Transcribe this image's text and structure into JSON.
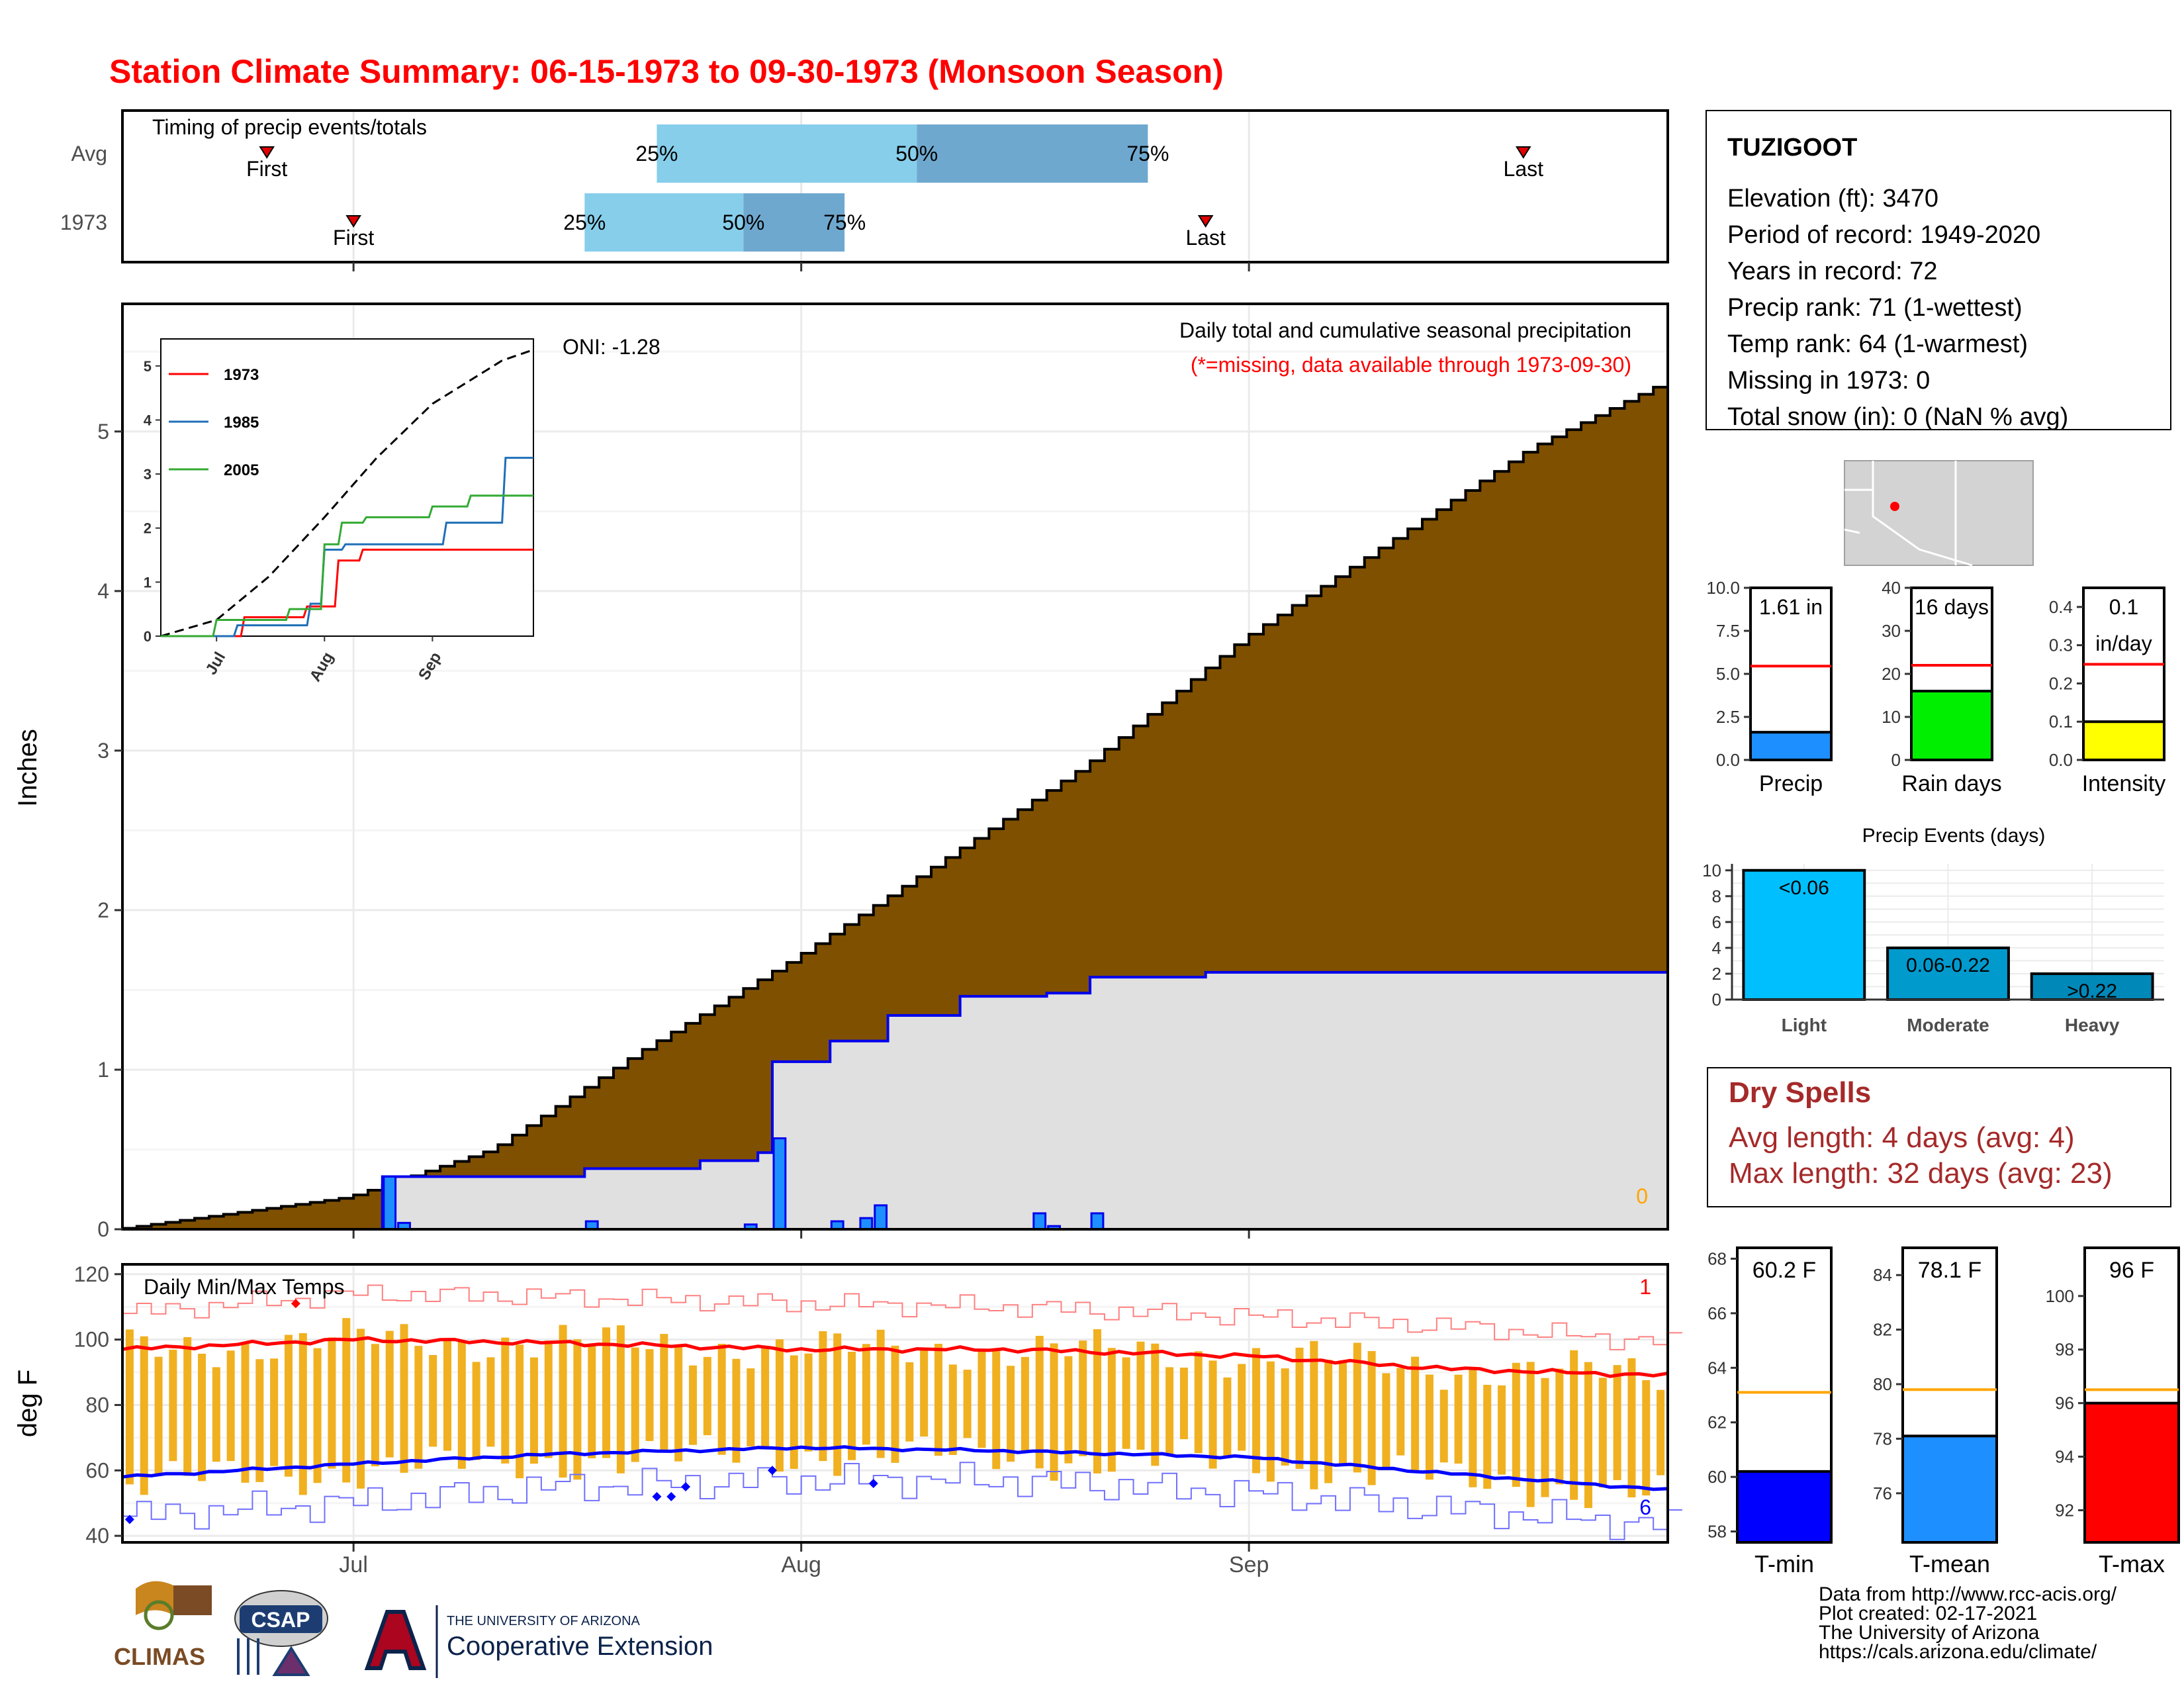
{
  "title": "Station Climate Summary: 06-15-1973 to 09-30-1973 (Monsoon Season)",
  "colors": {
    "title": "#ff0000",
    "brown": "#7f5000",
    "gray_area": "#e0e0e0",
    "blue_line": "#0000ee",
    "bar_blue": "#1e8fff",
    "light_blue": "#87ceeb",
    "mid_blue": "#6fa8cf",
    "tmax": "#ff0000",
    "tmin": "#0000ff",
    "orange": "#f0b020",
    "dry": "#a52a2a"
  },
  "timing": {
    "heading": "Timing of precip events/totals",
    "rows": [
      {
        "label": "Avg",
        "first_day": "06-25",
        "last_day": "09-20",
        "q25": "07-22",
        "q50": "08-09",
        "q75": "08-25",
        "first": "First",
        "last": "Last",
        "p25": "25%",
        "p50": "50%",
        "p75": "75%"
      },
      {
        "label": "1973",
        "first_day": "07-01",
        "last_day": "08-29",
        "q25": "07-17",
        "q50": "07-28",
        "q75": "08-04",
        "first": "First",
        "last": "Last",
        "p25": "25%",
        "p50": "50%",
        "p75": "75%"
      }
    ]
  },
  "precip_panel": {
    "ylabel": "Inches",
    "oni": "ONI: -1.28",
    "heading": "Daily total and cumulative seasonal precipitation",
    "note": "(*=missing, data available through 1973-09-30)",
    "missing_count": "0",
    "y_ticks": [
      "0",
      "1",
      "2",
      "3",
      "4",
      "5"
    ],
    "x_ticks": [
      "Jul",
      "Aug",
      "Sep"
    ]
  },
  "inset": {
    "y_ticks": [
      "0",
      "1",
      "2",
      "3",
      "4",
      "5"
    ],
    "x_ticks": [
      "Jul",
      "Aug",
      "Sep"
    ],
    "legend": [
      "1973",
      "1985",
      "2005"
    ]
  },
  "temp_panel": {
    "ylabel": "deg F",
    "heading": "Daily Min/Max Temps",
    "y_ticks": [
      "40",
      "60",
      "80",
      "100",
      "120"
    ],
    "x_ticks": [
      "Jul",
      "Aug",
      "Sep"
    ],
    "count_hot": "1",
    "count_cold": "6"
  },
  "station": {
    "name": "TUZIGOOT",
    "lines": [
      "Elevation (ft): 3470",
      "Period of record: 1949-2020",
      "Years in record: 72",
      "Precip rank: 71 (1-wettest)",
      "Temp rank: 64 (1-warmest)",
      "Missing in 1973: 0",
      "Total snow (in): 0 (NaN % avg)"
    ]
  },
  "mini_bars": [
    {
      "label": "Precip",
      "value_text": "1.61 in",
      "value": 1.61,
      "avg": 5.45,
      "ymax": 10.0,
      "ticks": [
        "0.0",
        "2.5",
        "5.0",
        "7.5",
        "10.0"
      ],
      "tick_vals": [
        0,
        2.5,
        5,
        7.5,
        10
      ],
      "fill": "#1e8fff"
    },
    {
      "label": "Rain days",
      "value_text": "16 days",
      "value": 16,
      "avg": 22,
      "ymax": 40,
      "ticks": [
        "0",
        "10",
        "20",
        "30",
        "40"
      ],
      "tick_vals": [
        0,
        10,
        20,
        30,
        40
      ],
      "fill": "#00ee00"
    },
    {
      "label": "Intensity",
      "value_text": "0.1",
      "value_text2": "in/day",
      "value": 0.1,
      "avg": 0.25,
      "ymax": 0.45,
      "ticks": [
        "0.0",
        "0.1",
        "0.2",
        "0.3",
        "0.4"
      ],
      "tick_vals": [
        0,
        0.1,
        0.2,
        0.3,
        0.4
      ],
      "fill": "#ffff00"
    }
  ],
  "events": {
    "title": "Precip Events (days)",
    "categories": [
      "Light",
      "Moderate",
      "Heavy"
    ],
    "bar_labels": [
      "<0.06",
      "0.06-0.22",
      ">0.22"
    ],
    "values": [
      10,
      4,
      2
    ],
    "ticks": [
      "0",
      "2",
      "4",
      "6",
      "8",
      "10"
    ],
    "fills": [
      "#00bfff",
      "#009acd",
      "#0088b8"
    ]
  },
  "dry_spells": {
    "title": "Dry Spells",
    "avg": "Avg length: 4 days (avg: 4)",
    "max": "Max length: 32 days (avg: 23)"
  },
  "temp_bars": [
    {
      "label": "T-min",
      "value_text": "60.2 F",
      "value": 60.2,
      "avg": 63.1,
      "ymin": 57.6,
      "ymax": 68.4,
      "ticks": [
        "58",
        "60",
        "62",
        "64",
        "66",
        "68"
      ],
      "tick_vals": [
        58,
        60,
        62,
        64,
        66,
        68
      ],
      "fill": "#0000ff"
    },
    {
      "label": "T-mean",
      "value_text": "78.1 F",
      "value": 78.1,
      "avg": 79.8,
      "ymin": 74.2,
      "ymax": 85.0,
      "ticks": [
        "76",
        "78",
        "80",
        "82",
        "84"
      ],
      "tick_vals": [
        76,
        78,
        80,
        82,
        84
      ],
      "fill": "#1e8fff"
    },
    {
      "label": "T-max",
      "value_text": "96 F",
      "value": 96,
      "avg": 96.5,
      "ymin": 90.8,
      "ymax": 101.8,
      "ticks": [
        "92",
        "94",
        "96",
        "98",
        "100"
      ],
      "tick_vals": [
        92,
        94,
        96,
        98,
        100
      ],
      "fill": "#ff0000"
    }
  ],
  "footer": [
    "Data from http://www.rcc-acis.org/",
    "Plot created: 02-17-2021",
    "The University of Arizona",
    "https://cals.arizona.edu/climate/"
  ],
  "logos": {
    "climas": "CLIMAS",
    "csap": "CSAP",
    "ua_small": "THE UNIVERSITY OF ARIZONA",
    "ua_big": "Cooperative Extension"
  },
  "chart_data": {
    "type": "area",
    "title": "Station Climate Summary: 06-15-1973 to 09-30-1973 (Monsoon Season)",
    "ylabel": "Inches",
    "ylim": [
      0,
      5.8
    ],
    "x_range": [
      "06-15",
      "09-30"
    ],
    "series": [
      {
        "name": "avg cumulative",
        "x": [
          "06-15",
          "07-01",
          "07-11",
          "07-21",
          "08-01",
          "08-11",
          "08-21",
          "09-01",
          "09-11",
          "09-21",
          "09-30"
        ],
        "values": [
          0.0,
          0.2,
          0.5,
          1.1,
          1.7,
          2.3,
          2.9,
          3.7,
          4.3,
          4.9,
          5.3
        ]
      },
      {
        "name": "1973 cumulative",
        "x": [
          "06-15",
          "07-02",
          "07-03",
          "07-17",
          "07-25",
          "07-29",
          "07-30",
          "08-03",
          "08-07",
          "08-12",
          "08-18",
          "08-21",
          "08-29",
          "09-30"
        ],
        "values": [
          0.0,
          0.0,
          0.33,
          0.38,
          0.43,
          0.48,
          1.05,
          1.18,
          1.34,
          1.46,
          1.48,
          1.58,
          1.61,
          1.61
        ]
      },
      {
        "name": "1973 daily",
        "x": [
          "07-03",
          "07-04",
          "07-17",
          "07-28",
          "07-30",
          "08-03",
          "08-05",
          "08-06",
          "08-17",
          "08-18",
          "08-21"
        ],
        "values": [
          0.33,
          0.04,
          0.05,
          0.03,
          0.57,
          0.05,
          0.07,
          0.15,
          0.1,
          0.02,
          0.1
        ]
      }
    ],
    "inset": {
      "ylim": [
        0,
        5.5
      ],
      "series": [
        {
          "name": "avg",
          "x": [
            "06-15",
            "07-01",
            "07-16",
            "08-01",
            "08-16",
            "09-01",
            "09-21",
            "09-30"
          ],
          "values": [
            0,
            0.3,
            1.1,
            2.2,
            3.3,
            4.3,
            5.1,
            5.3
          ]
        },
        {
          "name": "1973",
          "x": [
            "06-15",
            "07-09",
            "07-27",
            "08-05",
            "08-12",
            "09-30"
          ],
          "values": [
            0,
            0.35,
            0.55,
            1.4,
            1.6,
            1.6
          ]
        },
        {
          "name": "1985",
          "x": [
            "06-15",
            "07-07",
            "07-28",
            "08-01",
            "08-07",
            "08-22",
            "09-05",
            "09-22",
            "09-30"
          ],
          "values": [
            0,
            0.2,
            0.6,
            1.6,
            1.7,
            1.7,
            2.1,
            3.3,
            3.3
          ]
        },
        {
          "name": "2005",
          "x": [
            "06-15",
            "07-01",
            "07-22",
            "08-01",
            "08-06",
            "08-13",
            "09-01",
            "09-12",
            "09-30"
          ],
          "values": [
            0,
            0.3,
            0.5,
            1.7,
            2.1,
            2.2,
            2.4,
            2.6,
            2.6
          ]
        }
      ]
    },
    "temps": {
      "ylim": [
        38,
        123
      ],
      "x_range": [
        "06-15",
        "09-30"
      ],
      "avg_max": {
        "x": [
          "06-15",
          "07-01",
          "07-15",
          "08-01",
          "08-15",
          "09-01",
          "09-15",
          "09-30"
        ],
        "values": [
          97,
          100,
          99,
          97,
          97,
          95,
          91,
          89
        ]
      },
      "avg_min": {
        "x": [
          "06-15",
          "07-01",
          "07-15",
          "08-01",
          "08-15",
          "09-01",
          "09-15",
          "09-30"
        ],
        "values": [
          58,
          62,
          65,
          67,
          66,
          64,
          59,
          54
        ]
      },
      "record_max": {
        "x": [
          "06-15",
          "07-01",
          "07-15",
          "08-01",
          "08-15",
          "09-01",
          "09-15",
          "09-30"
        ],
        "values": [
          108,
          114,
          113,
          111,
          110,
          107,
          104,
          99
        ]
      },
      "record_min": {
        "x": [
          "06-15",
          "07-01",
          "07-15",
          "08-01",
          "08-15",
          "09-01",
          "09-15",
          "09-30"
        ],
        "values": [
          46,
          50,
          55,
          57,
          57,
          53,
          48,
          43
        ]
      }
    }
  }
}
